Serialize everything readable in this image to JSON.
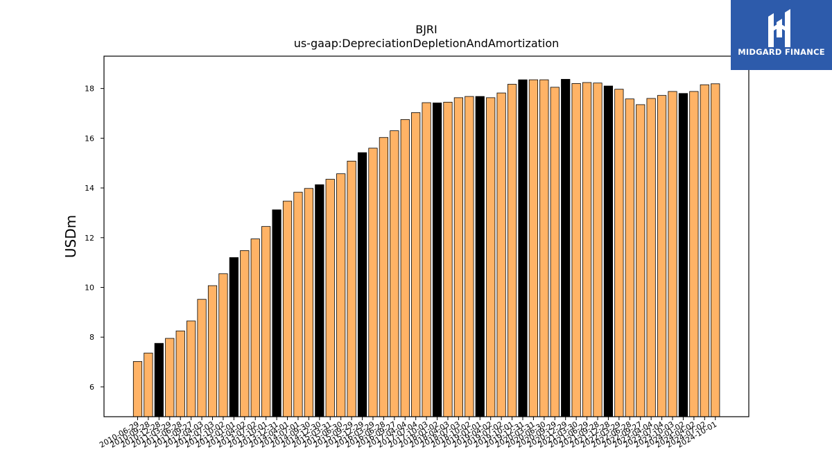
{
  "logo": {
    "text": "MIDGARD FINANCE",
    "icon": "midgard-m-logo-icon",
    "background": "#2d5bab"
  },
  "chart_data": {
    "type": "bar",
    "title": "BJRI",
    "subtitle": "us-gaap:DepreciationDepletionAndAmortization",
    "xlabel": "",
    "ylabel": "USDm",
    "ylim": [
      4.8,
      19.3
    ],
    "yticks": [
      6,
      8,
      10,
      12,
      14,
      16,
      18
    ],
    "grid": false,
    "colors": {
      "regular": "#ffb366",
      "highlight": "#000000",
      "edge": "#000000"
    },
    "categories": [
      "2010-06-29",
      "2010-09-28",
      "2010-12-28",
      "2011-03-29",
      "2011-06-28",
      "2011-09-27",
      "2012-04-03",
      "2012-07-03",
      "2012-10-02",
      "2013-01-01",
      "2013-04-02",
      "2013-07-02",
      "2013-10-01",
      "2013-12-31",
      "2014-04-01",
      "2014-07-01",
      "2014-09-30",
      "2014-12-30",
      "2015-03-31",
      "2015-06-30",
      "2015-09-29",
      "2015-12-29",
      "2016-03-29",
      "2016-06-28",
      "2016-09-27",
      "2017-04-04",
      "2017-07-04",
      "2017-10-03",
      "2018-01-02",
      "2018-04-03",
      "2018-07-03",
      "2018-10-02",
      "2019-01-01",
      "2019-04-02",
      "2019-07-02",
      "2019-10-01",
      "2019-12-31",
      "2020-03-31",
      "2020-06-30",
      "2020-09-29",
      "2020-12-29",
      "2021-03-30",
      "2021-06-29",
      "2021-09-28",
      "2021-12-28",
      "2022-03-29",
      "2022-06-28",
      "2022-09-27",
      "2023-04-04",
      "2023-07-04",
      "2023-10-03",
      "2024-01-02",
      "2024-04-02",
      "2024-07-02",
      "2024-10-01"
    ],
    "xtick_labels_shown": [
      "2010-06-29",
      "2010-09-28",
      "2010-12-28",
      "2011-03-29",
      "2011-06-28",
      "2011-09-27",
      "2012-04-03",
      "2012-07-03",
      "2012-10-02",
      "2013-01-01",
      "2013-04-02",
      "2013-07-02",
      "2013-10-01",
      "2013-12-31",
      "2014-04-01",
      "2014-07-01",
      "2014-09-30",
      "2014-12-30",
      "2015-03-31",
      "2015-06-30",
      "2015-09-29",
      "2015-12-29",
      "2016-03-29",
      "2016-06-28",
      "2016-09-27",
      "2017-04-04",
      "2017-07-04",
      "2017-10-03",
      "2018-01-02",
      "2018-04-03",
      "2018-07-03",
      "2018-10-02",
      "2019-01-01",
      "2019-04-02",
      "2019-07-02",
      "2019-10-01",
      "2019-12-31",
      "2020-03-31",
      "2020-06-30",
      "2020-09-29",
      "2020-12-29",
      "2021-03-30",
      "2021-06-29",
      "2021-09-28",
      "2021-12-28",
      "2022-03-29",
      "2022-06-28",
      "2022-09-27",
      "2023-04-04",
      "2023-07-04",
      "2023-10-03",
      "2024-01-02",
      "2024-04-02",
      "2024-07-02",
      "2024-10-01"
    ],
    "values": [
      7.02,
      7.36,
      7.75,
      7.95,
      8.25,
      8.65,
      9.52,
      10.07,
      10.55,
      11.2,
      11.48,
      11.95,
      12.45,
      13.12,
      13.47,
      13.83,
      13.98,
      14.13,
      14.35,
      14.57,
      15.08,
      15.42,
      15.6,
      16.03,
      16.3,
      16.75,
      17.03,
      17.43,
      17.42,
      17.45,
      17.63,
      17.68,
      17.68,
      17.63,
      17.82,
      18.17,
      18.35,
      18.35,
      18.35,
      18.05,
      18.37,
      18.2,
      18.24,
      18.22,
      18.1,
      17.97,
      17.58,
      17.35,
      17.6,
      17.72,
      17.88,
      17.8,
      17.88,
      18.15,
      18.19
    ],
    "highlight": [
      false,
      false,
      true,
      false,
      false,
      false,
      false,
      false,
      false,
      true,
      false,
      false,
      false,
      true,
      false,
      false,
      false,
      true,
      false,
      false,
      false,
      true,
      false,
      false,
      false,
      false,
      false,
      false,
      true,
      false,
      false,
      false,
      true,
      false,
      false,
      false,
      true,
      false,
      false,
      false,
      true,
      false,
      false,
      false,
      true,
      false,
      false,
      false,
      false,
      false,
      false,
      true,
      false,
      false,
      false
    ]
  }
}
